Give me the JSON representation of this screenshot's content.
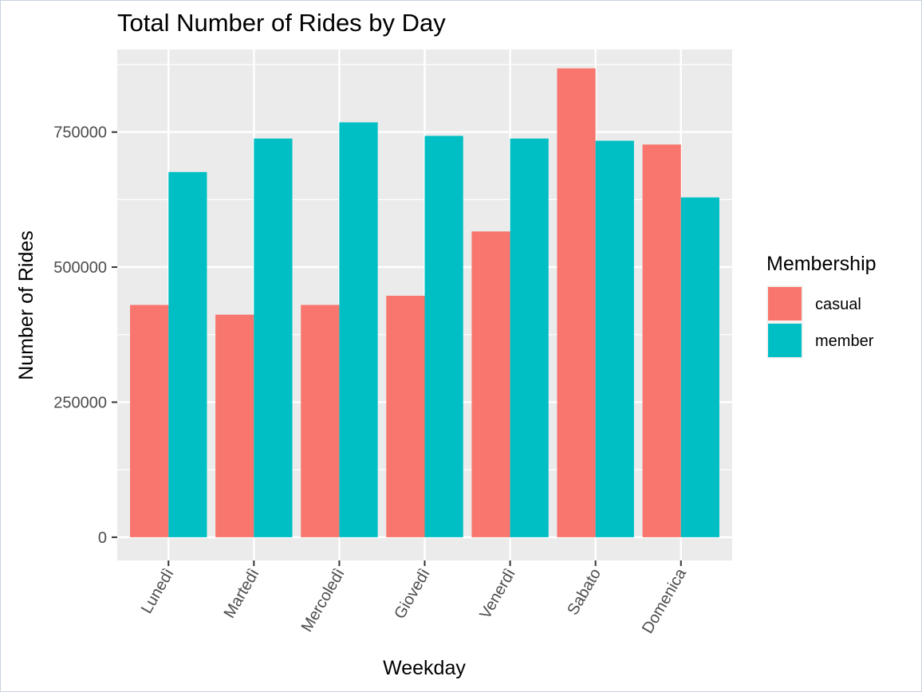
{
  "chart_data": {
    "type": "bar",
    "title": "Total Number of Rides by Day",
    "xlabel": "Weekday",
    "ylabel": "Number of Rides",
    "categories": [
      "Lunedì",
      "Martedì",
      "Mercoledì",
      "Giovedì",
      "Venerdì",
      "Sabato",
      "Domenica"
    ],
    "series": [
      {
        "name": "casual",
        "color": "#F8766D",
        "values": [
          430000,
          412000,
          430000,
          447000,
          566000,
          868000,
          727000
        ]
      },
      {
        "name": "member",
        "color": "#00BFC4",
        "values": [
          676000,
          738000,
          768000,
          743000,
          738000,
          734000,
          629000
        ]
      }
    ],
    "yticks": [
      0,
      250000,
      500000,
      750000
    ],
    "ytick_labels": [
      "0",
      "250000",
      "500000",
      "750000"
    ],
    "ylim": [
      -43000,
      903000
    ],
    "grid": true,
    "legend": {
      "title": "Membership",
      "position": "right"
    }
  }
}
